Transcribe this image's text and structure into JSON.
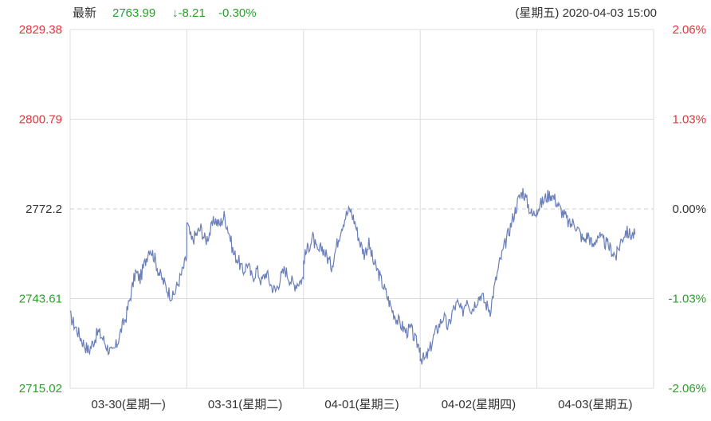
{
  "header": {
    "latest_label": "最新",
    "price": "2763.99",
    "change": "↓-8.21",
    "change_pct": "-0.30%",
    "datetime": "(星期五) 2020-04-03 15:00"
  },
  "colors": {
    "up": "#e8303b",
    "down": "#2aa02a",
    "neutral": "#333333",
    "line": "#6b7fb8",
    "grid": "#dddddd",
    "baseline": "#cccccc"
  },
  "chart_data": {
    "type": "line",
    "title": "",
    "xlabel": "",
    "ylabel": "",
    "reference_price": 2772.2,
    "ylim": [
      2715.02,
      2829.38
    ],
    "y_ticks_left": [
      "2829.38",
      "2800.79",
      "2772.2",
      "2743.61",
      "2715.02"
    ],
    "y_ticks_right": [
      "2.06%",
      "1.03%",
      "0.00%",
      "-1.03%",
      "-2.06%"
    ],
    "x_tick_labels": [
      "03-30(星期一)",
      "03-31(星期二)",
      "04-01(星期三)",
      "04-02(星期四)",
      "04-03(星期五)"
    ],
    "grid": true,
    "series": [
      {
        "days": [
          [
            2738,
            2735,
            2732,
            2729,
            2727,
            2730,
            2733,
            2731,
            2728,
            2726,
            2729,
            2734,
            2738,
            2745,
            2752,
            2750,
            2755,
            2760,
            2757,
            2752,
            2749,
            2746,
            2744,
            2748,
            2752,
            2757
          ],
          [
            2768,
            2762,
            2764,
            2766,
            2762,
            2765,
            2769,
            2767,
            2770,
            2765,
            2758,
            2756,
            2752,
            2755,
            2750,
            2753,
            2749,
            2752,
            2748,
            2746,
            2750,
            2753,
            2750,
            2748,
            2749,
            2750
          ],
          [
            2756,
            2760,
            2763,
            2758,
            2760,
            2757,
            2754,
            2760,
            2766,
            2770,
            2772,
            2768,
            2762,
            2758,
            2761,
            2755,
            2752,
            2748,
            2744,
            2740,
            2737,
            2735,
            2733,
            2734,
            2730,
            2728
          ],
          [
            2725,
            2724,
            2727,
            2732,
            2735,
            2738,
            2734,
            2740,
            2742,
            2739,
            2744,
            2740,
            2743,
            2745,
            2742,
            2740,
            2748,
            2755,
            2760,
            2765,
            2770,
            2775,
            2778,
            2774,
            2770,
            2772
          ],
          [
            2772,
            2774,
            2776,
            2777,
            2775,
            2772,
            2770,
            2767,
            2768,
            2765,
            2762,
            2764,
            2760,
            2764,
            2762,
            2761,
            2759,
            2757,
            2762,
            2765,
            2764,
            2764
          ]
        ]
      }
    ]
  }
}
